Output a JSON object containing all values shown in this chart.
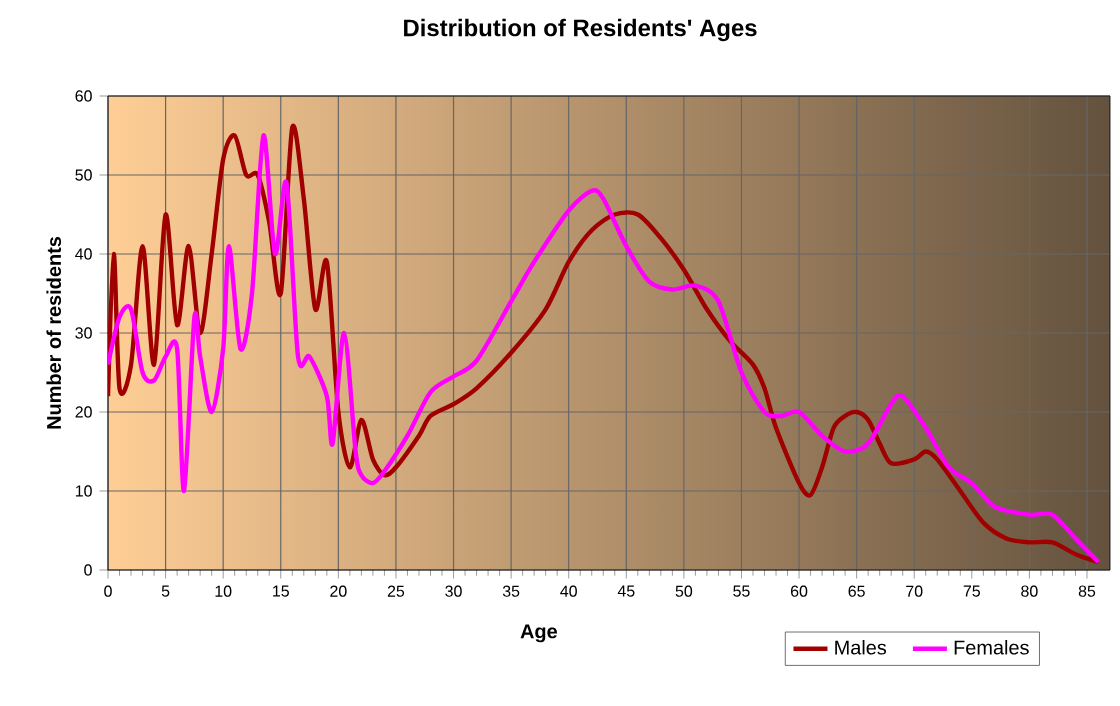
{
  "chart_data": {
    "type": "line",
    "title": "Distribution of Residents' Ages",
    "xlabel": "Age",
    "ylabel": "Number of residents",
    "xlim": [
      0,
      87
    ],
    "xticks": [
      0,
      5,
      10,
      15,
      20,
      25,
      30,
      35,
      40,
      45,
      50,
      55,
      60,
      65,
      70,
      75,
      80,
      85
    ],
    "ylim": [
      0,
      60
    ],
    "yticks": [
      0,
      10,
      20,
      30,
      40,
      50,
      60
    ],
    "grid": true,
    "legend": "bottom right",
    "marker": "none",
    "line_style": "solid",
    "series": [
      {
        "name": "Males",
        "color": "#a00000",
        "x": [
          0,
          0.5,
          1,
          2,
          3,
          4,
          5,
          6,
          7,
          8,
          9,
          10,
          11,
          12,
          13,
          14,
          15,
          16,
          17,
          18,
          19,
          20,
          21,
          22,
          23,
          24,
          25,
          27,
          28,
          30,
          32,
          35,
          38,
          40,
          42,
          44,
          46,
          48,
          50,
          52,
          54,
          56,
          57,
          58,
          60,
          61,
          62,
          63,
          64,
          65,
          66,
          67,
          68,
          70,
          71,
          72,
          74,
          76,
          78,
          80,
          82,
          84,
          86
        ],
        "values": [
          22,
          40,
          23,
          26,
          41,
          26,
          45,
          31,
          41,
          30,
          40,
          52,
          55,
          50,
          50,
          44,
          35,
          56,
          47,
          33,
          39,
          20,
          13,
          19,
          14,
          12,
          13,
          17,
          19.5,
          21,
          23,
          27.5,
          33,
          39,
          43,
          45,
          45,
          42,
          38,
          33,
          29,
          26,
          23,
          18,
          11,
          9.5,
          13,
          18,
          19.5,
          20,
          19,
          16,
          13.5,
          14,
          15,
          14,
          10,
          6,
          4,
          3.5,
          3.5,
          2,
          1
        ]
      },
      {
        "name": "Females",
        "color": "#ff00ff",
        "x": [
          0,
          1,
          2,
          3,
          4,
          5,
          6,
          6.6,
          7.5,
          8,
          9,
          10,
          10.5,
          11.5,
          12.5,
          13.5,
          14.5,
          15.5,
          16.5,
          17.5,
          19,
          19.5,
          20.5,
          21.5,
          22,
          23,
          24,
          26,
          28,
          30,
          32,
          35,
          37,
          40,
          42,
          43,
          45,
          47,
          49,
          51,
          53,
          55,
          57,
          58.5,
          60,
          62,
          64,
          66,
          68,
          69,
          71,
          73,
          75,
          77,
          80,
          82,
          84,
          86
        ],
        "values": [
          26,
          32,
          33,
          25,
          24,
          27,
          28,
          10,
          32,
          27,
          20,
          28,
          41,
          28,
          35,
          55,
          40,
          49,
          27,
          27,
          22,
          16,
          30,
          15,
          12,
          11,
          12.5,
          17,
          22.5,
          24.5,
          26.5,
          34,
          39,
          45.5,
          48,
          47,
          41,
          36.5,
          35.5,
          36,
          34,
          25,
          20,
          19.5,
          20,
          17,
          15,
          16,
          21,
          22,
          18,
          13,
          11,
          8,
          7,
          7,
          4,
          1
        ]
      }
    ]
  }
}
